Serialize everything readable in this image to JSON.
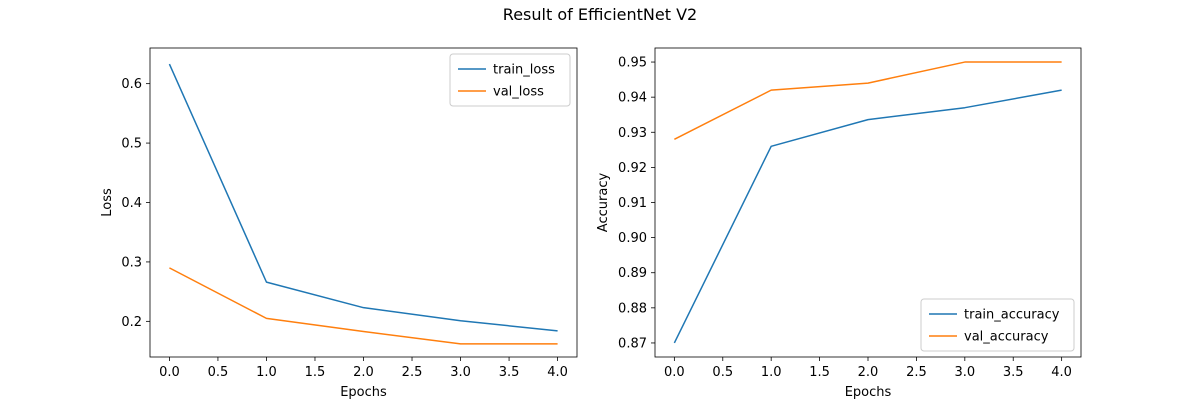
{
  "figure": {
    "title": "Result of EfficientNet V2"
  },
  "colors": {
    "series1": "#1f77b4",
    "series2": "#ff7f0e"
  },
  "chart_data": [
    {
      "type": "line",
      "xlabel": "Epochs",
      "ylabel": "Loss",
      "x": [
        0,
        1,
        2,
        3,
        4
      ],
      "xlim": [
        -0.2,
        4.2
      ],
      "ylim": [
        0.14,
        0.66
      ],
      "xticks": [
        0.0,
        0.5,
        1.0,
        1.5,
        2.0,
        2.5,
        3.0,
        3.5,
        4.0
      ],
      "xtick_labels": [
        "0.0",
        "0.5",
        "1.0",
        "1.5",
        "2.0",
        "2.5",
        "3.0",
        "3.5",
        "4.0"
      ],
      "yticks": [
        0.2,
        0.3,
        0.4,
        0.5,
        0.6
      ],
      "ytick_labels": [
        "0.2",
        "0.3",
        "0.4",
        "0.5",
        "0.6"
      ],
      "legend_position": "upper right",
      "grid": false,
      "series": [
        {
          "name": "train_loss",
          "values": [
            0.633,
            0.266,
            0.223,
            0.201,
            0.184
          ]
        },
        {
          "name": "val_loss",
          "values": [
            0.29,
            0.205,
            0.183,
            0.162,
            0.162
          ]
        }
      ]
    },
    {
      "type": "line",
      "xlabel": "Epochs",
      "ylabel": "Accuracy",
      "x": [
        0,
        1,
        2,
        3,
        4
      ],
      "xlim": [
        -0.2,
        4.2
      ],
      "ylim": [
        0.866,
        0.954
      ],
      "xticks": [
        0.0,
        0.5,
        1.0,
        1.5,
        2.0,
        2.5,
        3.0,
        3.5,
        4.0
      ],
      "xtick_labels": [
        "0.0",
        "0.5",
        "1.0",
        "1.5",
        "2.0",
        "2.5",
        "3.0",
        "3.5",
        "4.0"
      ],
      "yticks": [
        0.87,
        0.88,
        0.89,
        0.9,
        0.91,
        0.92,
        0.93,
        0.94,
        0.95
      ],
      "ytick_labels": [
        "0.87",
        "0.88",
        "0.89",
        "0.90",
        "0.91",
        "0.92",
        "0.93",
        "0.94",
        "0.95"
      ],
      "legend_position": "lower right",
      "grid": false,
      "series": [
        {
          "name": "train_accuracy",
          "values": [
            0.87,
            0.926,
            0.9336,
            0.937,
            0.942
          ]
        },
        {
          "name": "val_accuracy",
          "values": [
            0.928,
            0.942,
            0.944,
            0.95,
            0.95
          ]
        }
      ]
    }
  ]
}
